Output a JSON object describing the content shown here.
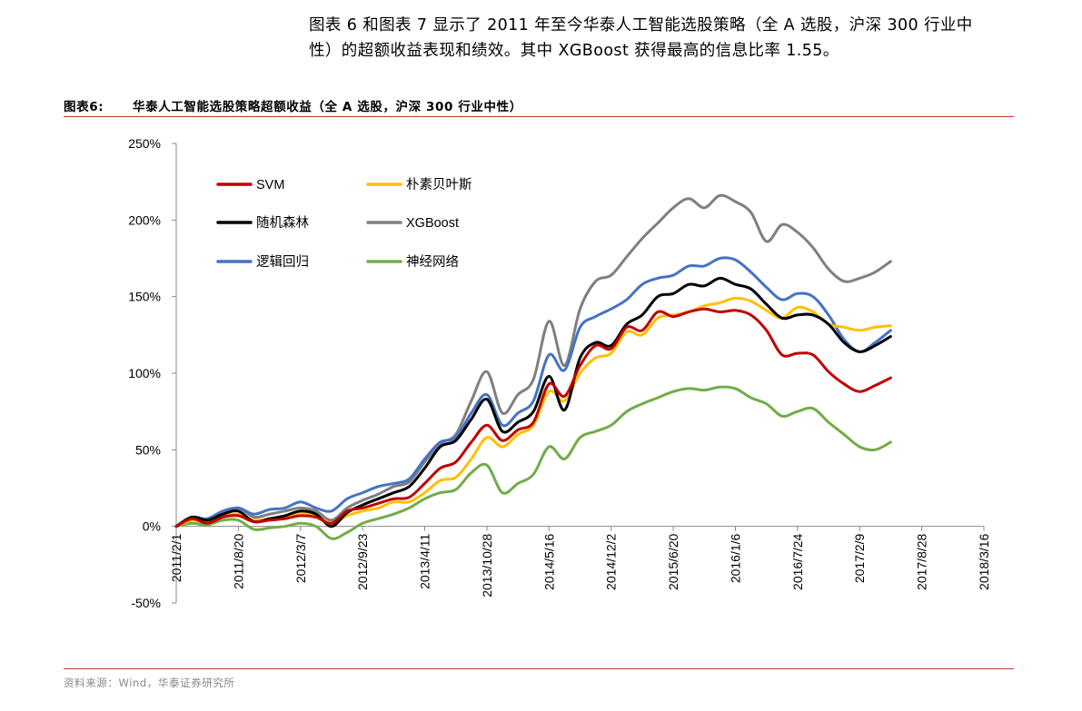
{
  "intro": {
    "line1": "图表 6 和图表 7 显示了 2011 年至今华泰人工智能选股策略（全 A 选股，沪深 300 行业中",
    "line2": "性）的超额收益表现和绩效。其中 XGBoost 获得最高的信息比率 1.55。"
  },
  "figure": {
    "label": "图表6:",
    "title": "华泰人工智能选股策略超额收益（全 A 选股，沪深 300 行业中性）"
  },
  "source": "资料来源：Wind，华泰证券研究所",
  "chart_data": {
    "type": "line",
    "title": "华泰人工智能选股策略超额收益（全 A 选股，沪深 300 行业中性）",
    "xlabel": "",
    "ylabel": "",
    "ylim": [
      -0.5,
      2.5
    ],
    "yticks": [
      -0.5,
      0,
      0.5,
      1.0,
      1.5,
      2.0,
      2.5
    ],
    "ytick_labels": [
      "-50%",
      "0%",
      "50%",
      "100%",
      "150%",
      "200%",
      "250%"
    ],
    "x_tick_labels": [
      "2011/2/1",
      "2011/8/20",
      "2012/3/7",
      "2012/9/23",
      "2013/4/11",
      "2013/10/28",
      "2014/5/16",
      "2014/12/2",
      "2015/6/20",
      "2016/1/6",
      "2016/7/24",
      "2017/2/9",
      "2017/8/28",
      "2018/3/16"
    ],
    "x": [
      0,
      0.25,
      0.5,
      0.75,
      1,
      1.25,
      1.5,
      1.75,
      2,
      2.25,
      2.5,
      2.75,
      3,
      3.25,
      3.5,
      3.75,
      4,
      4.25,
      4.5,
      4.75,
      5,
      5.25,
      5.5,
      5.75,
      6,
      6.25,
      6.5,
      6.75,
      7,
      7.25,
      7.5,
      7.75,
      8,
      8.25,
      8.5,
      8.75,
      9,
      9.25,
      9.5,
      9.75,
      10,
      10.25,
      10.5,
      10.75,
      11,
      11.25,
      11.5,
      11.75,
      12,
      12.25,
      12.5,
      12.75,
      13
    ],
    "legend_position": "top-left",
    "series": [
      {
        "name": "SVM",
        "color": "#c00000",
        "values": [
          0.0,
          0.05,
          0.02,
          0.06,
          0.07,
          0.03,
          0.04,
          0.05,
          0.07,
          0.06,
          0.02,
          0.1,
          0.12,
          0.15,
          0.18,
          0.19,
          0.28,
          0.38,
          0.42,
          0.55,
          0.66,
          0.56,
          0.63,
          0.68,
          0.93,
          0.85,
          1.05,
          1.18,
          1.16,
          1.3,
          1.28,
          1.4,
          1.37,
          1.4,
          1.42,
          1.4,
          1.41,
          1.38,
          1.28,
          1.12,
          1.13,
          1.12,
          1.01,
          0.93,
          0.88,
          0.92,
          0.97,
          null,
          null,
          null,
          null,
          null,
          null
        ]
      },
      {
        "name": "朴素贝叶斯",
        "color": "#ffc000",
        "values": [
          0.0,
          0.04,
          0.03,
          0.07,
          0.08,
          0.04,
          0.05,
          0.06,
          0.09,
          0.07,
          0.02,
          0.07,
          0.1,
          0.12,
          0.16,
          0.16,
          0.22,
          0.3,
          0.32,
          0.44,
          0.58,
          0.52,
          0.6,
          0.66,
          0.88,
          0.82,
          1.0,
          1.1,
          1.13,
          1.27,
          1.25,
          1.36,
          1.38,
          1.4,
          1.44,
          1.46,
          1.49,
          1.47,
          1.41,
          1.36,
          1.43,
          1.4,
          1.32,
          1.3,
          1.28,
          1.3,
          1.31,
          null,
          null,
          null,
          null,
          null,
          null
        ]
      },
      {
        "name": "随机森林",
        "color": "#000000",
        "values": [
          0.0,
          0.06,
          0.04,
          0.08,
          0.1,
          0.03,
          0.05,
          0.07,
          0.1,
          0.08,
          0.0,
          0.09,
          0.14,
          0.18,
          0.22,
          0.26,
          0.38,
          0.52,
          0.56,
          0.7,
          0.83,
          0.62,
          0.68,
          0.75,
          0.98,
          0.76,
          1.1,
          1.2,
          1.18,
          1.32,
          1.38,
          1.5,
          1.52,
          1.58,
          1.57,
          1.62,
          1.58,
          1.55,
          1.45,
          1.36,
          1.38,
          1.38,
          1.32,
          1.2,
          1.14,
          1.18,
          1.24,
          null,
          null,
          null,
          null,
          null,
          null
        ]
      },
      {
        "name": "XGBoost",
        "color": "#7f7f7f",
        "values": [
          0.0,
          0.05,
          0.04,
          0.08,
          0.12,
          0.06,
          0.08,
          0.1,
          0.12,
          0.1,
          0.04,
          0.12,
          0.17,
          0.21,
          0.26,
          0.29,
          0.42,
          0.54,
          0.6,
          0.82,
          1.01,
          0.74,
          0.86,
          0.96,
          1.34,
          1.05,
          1.42,
          1.6,
          1.64,
          1.76,
          1.88,
          1.98,
          2.08,
          2.14,
          2.08,
          2.16,
          2.12,
          2.05,
          1.86,
          1.97,
          1.92,
          1.82,
          1.68,
          1.6,
          1.62,
          1.66,
          1.73,
          null,
          null,
          null,
          null,
          null,
          null
        ]
      },
      {
        "name": "逻辑回归",
        "color": "#4472c4",
        "values": [
          0.0,
          0.06,
          0.05,
          0.1,
          0.12,
          0.08,
          0.11,
          0.12,
          0.16,
          0.12,
          0.1,
          0.18,
          0.22,
          0.26,
          0.28,
          0.31,
          0.44,
          0.55,
          0.58,
          0.74,
          0.86,
          0.66,
          0.74,
          0.82,
          1.12,
          1.02,
          1.3,
          1.37,
          1.42,
          1.48,
          1.58,
          1.62,
          1.64,
          1.7,
          1.7,
          1.75,
          1.74,
          1.66,
          1.56,
          1.48,
          1.52,
          1.5,
          1.38,
          1.22,
          1.14,
          1.2,
          1.28,
          null,
          null,
          null,
          null,
          null,
          null
        ]
      },
      {
        "name": "神经网络",
        "color": "#70ad47",
        "values": [
          0.0,
          0.02,
          0.01,
          0.04,
          0.04,
          -0.02,
          -0.01,
          0.0,
          0.02,
          0.0,
          -0.08,
          -0.04,
          0.02,
          0.05,
          0.08,
          0.12,
          0.18,
          0.22,
          0.24,
          0.35,
          0.4,
          0.22,
          0.28,
          0.34,
          0.52,
          0.44,
          0.58,
          0.62,
          0.66,
          0.75,
          0.8,
          0.84,
          0.88,
          0.9,
          0.89,
          0.91,
          0.9,
          0.84,
          0.8,
          0.72,
          0.75,
          0.77,
          0.68,
          0.6,
          0.52,
          0.5,
          0.55,
          null,
          null,
          null,
          null,
          null,
          null
        ]
      }
    ]
  }
}
